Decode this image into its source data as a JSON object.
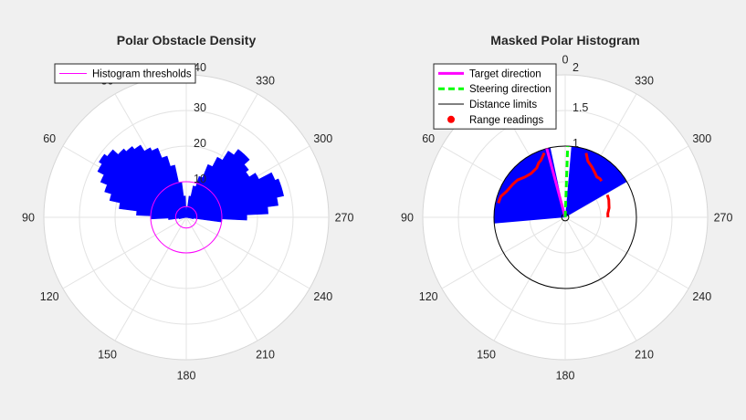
{
  "chart_data": [
    {
      "type": "polar",
      "title": "Polar Obstacle Density",
      "theta_zero": "top",
      "theta_direction": "counterclockwise",
      "theta_ticks": [
        0,
        30,
        60,
        90,
        120,
        150,
        180,
        210,
        240,
        270,
        300,
        330
      ],
      "theta_tick_labels": [
        "",
        "30",
        "60",
        "90",
        "120",
        "150",
        "180",
        "210",
        "240",
        "270",
        "300",
        "330"
      ],
      "r_ticks": [
        0,
        10,
        20,
        30,
        40
      ],
      "r_tick_labels": [
        "",
        "10",
        "20",
        "30",
        "40"
      ],
      "rlim": [
        0,
        40
      ],
      "grid": true,
      "legend": {
        "placement": "top-left",
        "entries": [
          "Histogram thresholds"
        ]
      },
      "series": [
        {
          "name": "density",
          "style": "filled-bars",
          "color": "#0000ff",
          "points": [
            [
              0,
              2
            ],
            [
              5,
              6
            ],
            [
              10,
              10
            ],
            [
              15,
              15
            ],
            [
              20,
              18
            ],
            [
              25,
              21
            ],
            [
              30,
              22
            ],
            [
              35,
              24
            ],
            [
              40,
              25
            ],
            [
              45,
              26
            ],
            [
              50,
              28
            ],
            [
              55,
              29
            ],
            [
              60,
              28
            ],
            [
              65,
              26
            ],
            [
              70,
              24
            ],
            [
              75,
              22
            ],
            [
              80,
              19
            ],
            [
              85,
              14
            ],
            [
              90,
              10
            ],
            [
              95,
              5
            ],
            [
              100,
              2
            ],
            [
              180,
              0
            ],
            [
              260,
              2
            ],
            [
              265,
              10
            ],
            [
              270,
              17
            ],
            [
              275,
              23
            ],
            [
              280,
              26
            ],
            [
              285,
              28
            ],
            [
              290,
              28
            ],
            [
              295,
              27
            ],
            [
              300,
              23
            ],
            [
              305,
              21
            ],
            [
              310,
              22
            ],
            [
              315,
              24
            ],
            [
              320,
              24
            ],
            [
              325,
              22
            ],
            [
              330,
              19
            ],
            [
              335,
              16
            ],
            [
              340,
              12
            ],
            [
              345,
              9
            ],
            [
              350,
              6
            ],
            [
              355,
              3
            ]
          ]
        },
        {
          "name": "Histogram thresholds",
          "style": "circle",
          "color": "#ff00ff",
          "radii": [
            3,
            10
          ]
        }
      ]
    },
    {
      "type": "polar",
      "title": "Masked Polar Histogram",
      "theta_zero": "top",
      "theta_direction": "counterclockwise",
      "theta_ticks": [
        0,
        30,
        60,
        90,
        120,
        150,
        180,
        210,
        240,
        270,
        300,
        330
      ],
      "theta_tick_labels": [
        "0",
        "30",
        "60",
        "90",
        "120",
        "150",
        "180",
        "210",
        "240",
        "270",
        "300",
        "330"
      ],
      "r_ticks": [
        0,
        0.5,
        1,
        1.5,
        2
      ],
      "r_tick_labels": [
        "",
        "",
        "1",
        "1.5",
        "2"
      ],
      "rlim": [
        0,
        2
      ],
      "grid": true,
      "legend": {
        "placement": "top-left",
        "entries": [
          "Target direction",
          "Steering direction",
          "Distance limits",
          "Range readings"
        ]
      },
      "series": [
        {
          "name": "masked-sectors",
          "style": "filled-sectors",
          "color": "#0000ff",
          "sectors": [
            [
              12,
              95,
              1
            ],
            [
              -60,
              -5,
              1
            ]
          ]
        },
        {
          "name": "Target direction",
          "color": "#ff00ff",
          "angle_deg": 15,
          "length": 1
        },
        {
          "name": "Steering direction",
          "color": "#00ff00",
          "angle_deg": -2,
          "length": 1
        },
        {
          "name": "Distance limits",
          "color": "#000000",
          "radii": [
            0.05,
            1
          ]
        },
        {
          "name": "Range readings",
          "color": "#ff0000",
          "segments": [
            [
              [
                18,
                0.95
              ],
              [
                23,
                0.87
              ],
              [
                26,
                0.85
              ],
              [
                30,
                0.8
              ],
              [
                38,
                0.78
              ],
              [
                45,
                0.8
              ],
              [
                52,
                0.85
              ],
              [
                58,
                0.87
              ],
              [
                66,
                0.9
              ],
              [
                72,
                0.95
              ],
              [
                78,
                0.96
              ]
            ],
            [
              [
                -18,
                0.95
              ],
              [
                -22,
                0.85
              ],
              [
                -28,
                0.8
              ],
              [
                -34,
                0.75
              ],
              [
                -38,
                0.72
              ],
              [
                -42,
                0.73
              ],
              [
                -45,
                0.72
              ]
            ],
            [
              [
                -62,
                0.67
              ],
              [
                -68,
                0.66
              ],
              [
                -78,
                0.63
              ],
              [
                -85,
                0.6
              ],
              [
                -90,
                0.6
              ]
            ]
          ]
        }
      ]
    }
  ]
}
